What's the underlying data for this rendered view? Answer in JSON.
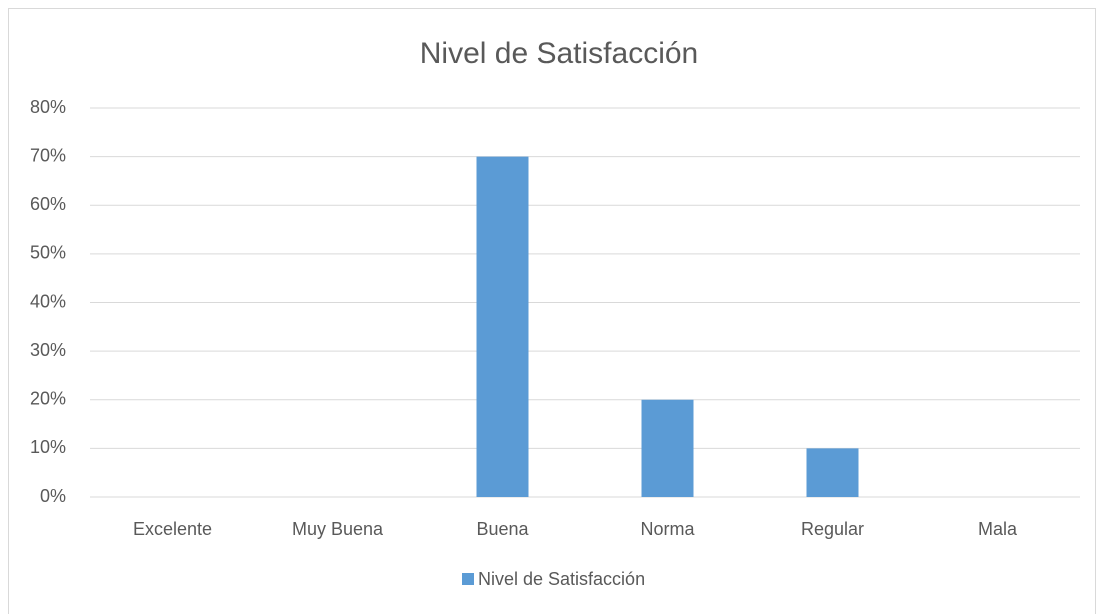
{
  "chart_data": {
    "type": "bar",
    "title": "Nivel de Satisfacción",
    "categories": [
      "Excelente",
      "Muy Buena",
      "Buena",
      "Norma",
      "Regular",
      "Mala"
    ],
    "series": [
      {
        "name": "Nivel de Satisfacción",
        "color": "#5b9bd5",
        "values": [
          0,
          0,
          70,
          20,
          10,
          0
        ]
      }
    ],
    "ylim": [
      0,
      80
    ],
    "yticks": [
      {
        "value": 0,
        "label": "0%"
      },
      {
        "value": 10,
        "label": "10%"
      },
      {
        "value": 20,
        "label": "20%"
      },
      {
        "value": 30,
        "label": "30%"
      },
      {
        "value": 40,
        "label": "40%"
      },
      {
        "value": 50,
        "label": "50%"
      },
      {
        "value": 60,
        "label": "60%"
      },
      {
        "value": 70,
        "label": "70%"
      },
      {
        "value": 80,
        "label": "80%"
      }
    ],
    "grid": true,
    "legend": "bottom"
  }
}
